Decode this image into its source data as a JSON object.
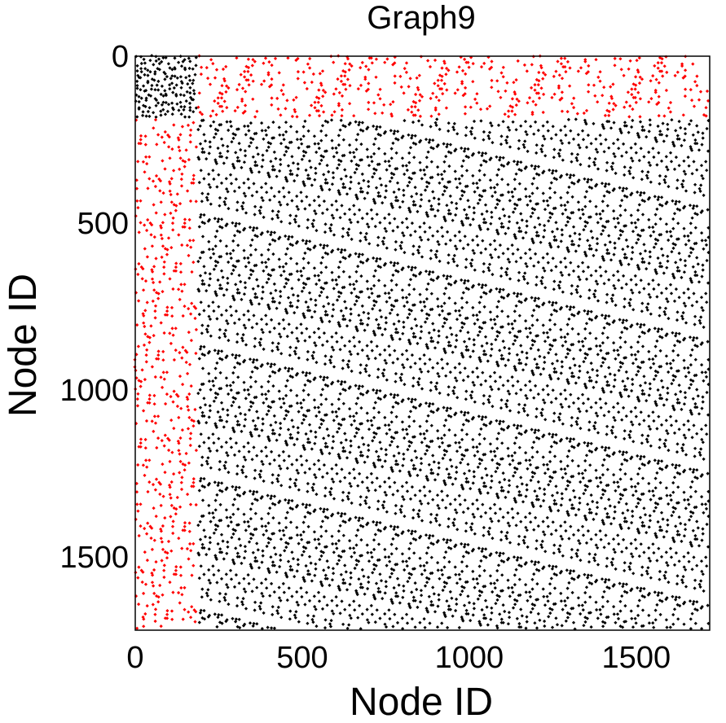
{
  "chart_data": {
    "type": "scatter",
    "title": "Graph9",
    "xlabel": "Node ID",
    "ylabel": "Node ID",
    "xlim": [
      0,
      1720
    ],
    "ylim": [
      0,
      1720
    ],
    "y_inverted": true,
    "x_ticks": [
      0,
      500,
      1000,
      1500
    ],
    "y_ticks": [
      0,
      500,
      1000,
      1500
    ],
    "x_tick_labels": [
      "0",
      "500",
      "1000",
      "1500"
    ],
    "y_tick_labels": [
      "0",
      "500",
      "1000",
      "1500"
    ],
    "grid": false,
    "legend": "none",
    "marker": "diamond",
    "block_boundary": 190,
    "series": [
      {
        "color": "#000000",
        "region": {
          "x": [
            0,
            190
          ],
          "y": [
            0,
            190
          ]
        },
        "density": 0.85
      },
      {
        "color": "#ff0000",
        "region": {
          "x": [
            190,
            1720
          ],
          "y": [
            0,
            190
          ]
        },
        "density": 0.35
      },
      {
        "color": "#ff0000",
        "region": {
          "x": [
            0,
            190
          ],
          "y": [
            190,
            1720
          ]
        },
        "density": 0.35
      },
      {
        "color": "#000000",
        "region": {
          "x": [
            190,
            1720
          ],
          "y": [
            190,
            1720
          ]
        },
        "density": 0.45
      }
    ]
  }
}
